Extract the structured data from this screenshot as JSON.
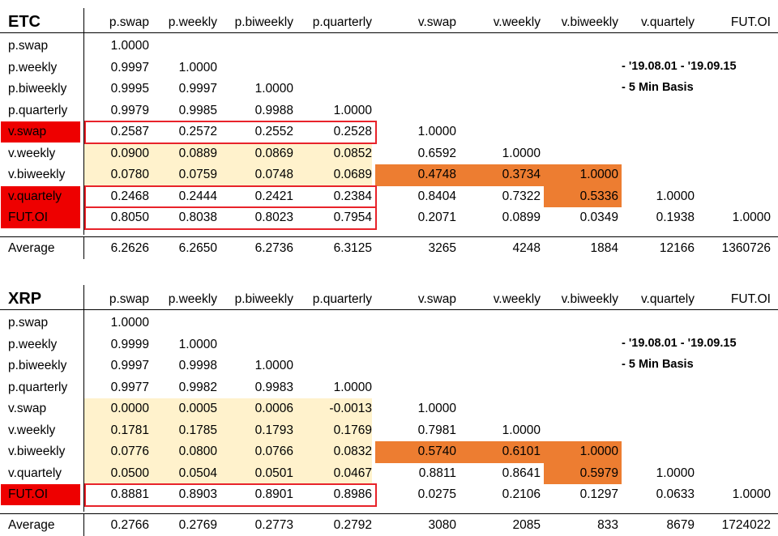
{
  "chart_data": [
    {
      "type": "table",
      "title": "ETC",
      "columns": [
        "p.swap",
        "p.weekly",
        "p.biweekly",
        "p.quarterly",
        "v.swap",
        "v.weekly",
        "v.biweekly",
        "v.quartely",
        "FUT.OI"
      ],
      "rows": [
        {
          "label": "p.swap",
          "values": [
            "1.0000",
            "",
            "",
            "",
            "",
            "",
            "",
            "",
            ""
          ]
        },
        {
          "label": "p.weekly",
          "values": [
            "0.9997",
            "1.0000",
            "",
            "",
            "",
            "",
            "",
            "",
            ""
          ]
        },
        {
          "label": "p.biweekly",
          "values": [
            "0.9995",
            "0.9997",
            "1.0000",
            "",
            "",
            "",
            "",
            "",
            ""
          ]
        },
        {
          "label": "p.quarterly",
          "values": [
            "0.9979",
            "0.9985",
            "0.9988",
            "1.0000",
            "",
            "",
            "",
            "",
            ""
          ]
        },
        {
          "label": "v.swap",
          "values": [
            "0.2587",
            "0.2572",
            "0.2552",
            "0.2528",
            "1.0000",
            "",
            "",
            "",
            ""
          ]
        },
        {
          "label": "v.weekly",
          "values": [
            "0.0900",
            "0.0889",
            "0.0869",
            "0.0852",
            "0.6592",
            "1.0000",
            "",
            "",
            ""
          ]
        },
        {
          "label": "v.biweekly",
          "values": [
            "0.0780",
            "0.0759",
            "0.0748",
            "0.0689",
            "0.4748",
            "0.3734",
            "1.0000",
            "",
            ""
          ]
        },
        {
          "label": "v.quartely",
          "values": [
            "0.2468",
            "0.2444",
            "0.2421",
            "0.2384",
            "0.8404",
            "0.7322",
            "0.5336",
            "1.0000",
            ""
          ]
        },
        {
          "label": "FUT.OI",
          "values": [
            "0.8050",
            "0.8038",
            "0.8023",
            "0.7954",
            "0.2071",
            "0.0899",
            "0.0349",
            "0.1938",
            "1.0000"
          ]
        }
      ],
      "average": {
        "label": "Average",
        "values": [
          "6.2626",
          "6.2650",
          "6.2736",
          "6.3125",
          "3265",
          "4248",
          "1884",
          "12166",
          "1360726"
        ]
      },
      "notes": [
        "- '19.08.01 - '19.09.15",
        "- 5 Min Basis"
      ],
      "red_labels": [
        4,
        7,
        8
      ],
      "beige_rows": [
        5,
        6
      ],
      "orange_cells": [
        [
          6,
          4
        ],
        [
          6,
          5
        ],
        [
          6,
          6
        ],
        [
          7,
          6
        ]
      ],
      "red_boxes": [
        [
          4,
          4
        ],
        [
          7,
          7
        ],
        [
          8,
          8
        ]
      ],
      "colors": {
        "red": "#ee0000",
        "beige": "#fff2cc",
        "orange": "#ed7d31",
        "outline": "#e8232a"
      }
    },
    {
      "type": "table",
      "title": "XRP",
      "columns": [
        "p.swap",
        "p.weekly",
        "p.biweekly",
        "p.quarterly",
        "v.swap",
        "v.weekly",
        "v.biweekly",
        "v.quartely",
        "FUT.OI"
      ],
      "rows": [
        {
          "label": "p.swap",
          "values": [
            "1.0000",
            "",
            "",
            "",
            "",
            "",
            "",
            "",
            ""
          ]
        },
        {
          "label": "p.weekly",
          "values": [
            "0.9999",
            "1.0000",
            "",
            "",
            "",
            "",
            "",
            "",
            ""
          ]
        },
        {
          "label": "p.biweekly",
          "values": [
            "0.9997",
            "0.9998",
            "1.0000",
            "",
            "",
            "",
            "",
            "",
            ""
          ]
        },
        {
          "label": "p.quarterly",
          "values": [
            "0.9977",
            "0.9982",
            "0.9983",
            "1.0000",
            "",
            "",
            "",
            "",
            ""
          ]
        },
        {
          "label": "v.swap",
          "values": [
            "0.0000",
            "0.0005",
            "0.0006",
            "-0.0013",
            "1.0000",
            "",
            "",
            "",
            ""
          ]
        },
        {
          "label": "v.weekly",
          "values": [
            "0.1781",
            "0.1785",
            "0.1793",
            "0.1769",
            "0.7981",
            "1.0000",
            "",
            "",
            ""
          ]
        },
        {
          "label": "v.biweekly",
          "values": [
            "0.0776",
            "0.0800",
            "0.0766",
            "0.0832",
            "0.5740",
            "0.6101",
            "1.0000",
            "",
            ""
          ]
        },
        {
          "label": "v.quartely",
          "values": [
            "0.0500",
            "0.0504",
            "0.0501",
            "0.0467",
            "0.8811",
            "0.8641",
            "0.5979",
            "1.0000",
            ""
          ]
        },
        {
          "label": "FUT.OI",
          "values": [
            "0.8881",
            "0.8903",
            "0.8901",
            "0.8986",
            "0.0275",
            "0.2106",
            "0.1297",
            "0.0633",
            "1.0000"
          ]
        }
      ],
      "average": {
        "label": "Average",
        "values": [
          "0.2766",
          "0.2769",
          "0.2773",
          "0.2792",
          "3080",
          "2085",
          "833",
          "8679",
          "1724022"
        ]
      },
      "notes": [
        "- '19.08.01 - '19.09.15",
        "- 5 Min Basis"
      ],
      "red_labels": [
        8
      ],
      "beige_rows": [
        4,
        5,
        6,
        7
      ],
      "orange_cells": [
        [
          6,
          4
        ],
        [
          6,
          5
        ],
        [
          6,
          6
        ],
        [
          7,
          6
        ]
      ],
      "red_boxes": [
        [
          8,
          8
        ]
      ],
      "colors": {
        "red": "#ee0000",
        "beige": "#fff2cc",
        "orange": "#ed7d31",
        "outline": "#e8232a"
      }
    }
  ]
}
